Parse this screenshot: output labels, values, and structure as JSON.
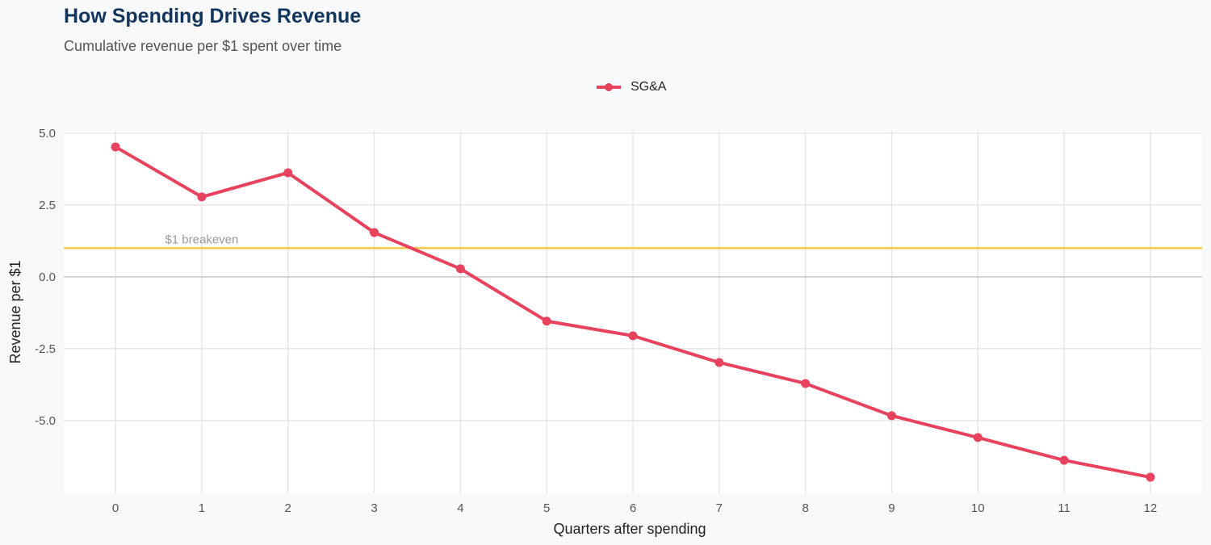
{
  "chart_data": {
    "type": "line",
    "title": "How Spending Drives Revenue",
    "subtitle": "Cumulative revenue per $1 spent over time",
    "xlabel": "Quarters after spending",
    "ylabel": "Revenue per $1",
    "x": [
      0,
      1,
      2,
      3,
      4,
      5,
      6,
      7,
      8,
      9,
      10,
      11,
      12
    ],
    "series": [
      {
        "name": "SG&A",
        "color": "#e8435e",
        "values": [
          4.52,
          2.78,
          3.62,
          1.54,
          0.28,
          -1.54,
          -2.05,
          -2.98,
          -3.71,
          -4.83,
          -5.59,
          -6.38,
          -6.97
        ]
      }
    ],
    "xlim": [
      -0.6,
      12.6
    ],
    "ylim": [
      -7.53,
      5.08
    ],
    "yticks": [
      5.0,
      2.5,
      0.0,
      -2.5,
      -5.0
    ],
    "ytick_labels": [
      "5.0",
      "2.5",
      "0.0",
      "-2.5",
      "-5.0"
    ],
    "xtick_labels": [
      "0",
      "1",
      "2",
      "3",
      "4",
      "5",
      "6",
      "7",
      "8",
      "9",
      "10",
      "11",
      "12"
    ],
    "reference_lines": [
      {
        "y": 1,
        "label": "$1 breakeven",
        "color": "#f6c94c"
      },
      {
        "y": 0,
        "color": "#c8c8c8"
      }
    ],
    "grid": true,
    "legend_position": "top-center"
  }
}
